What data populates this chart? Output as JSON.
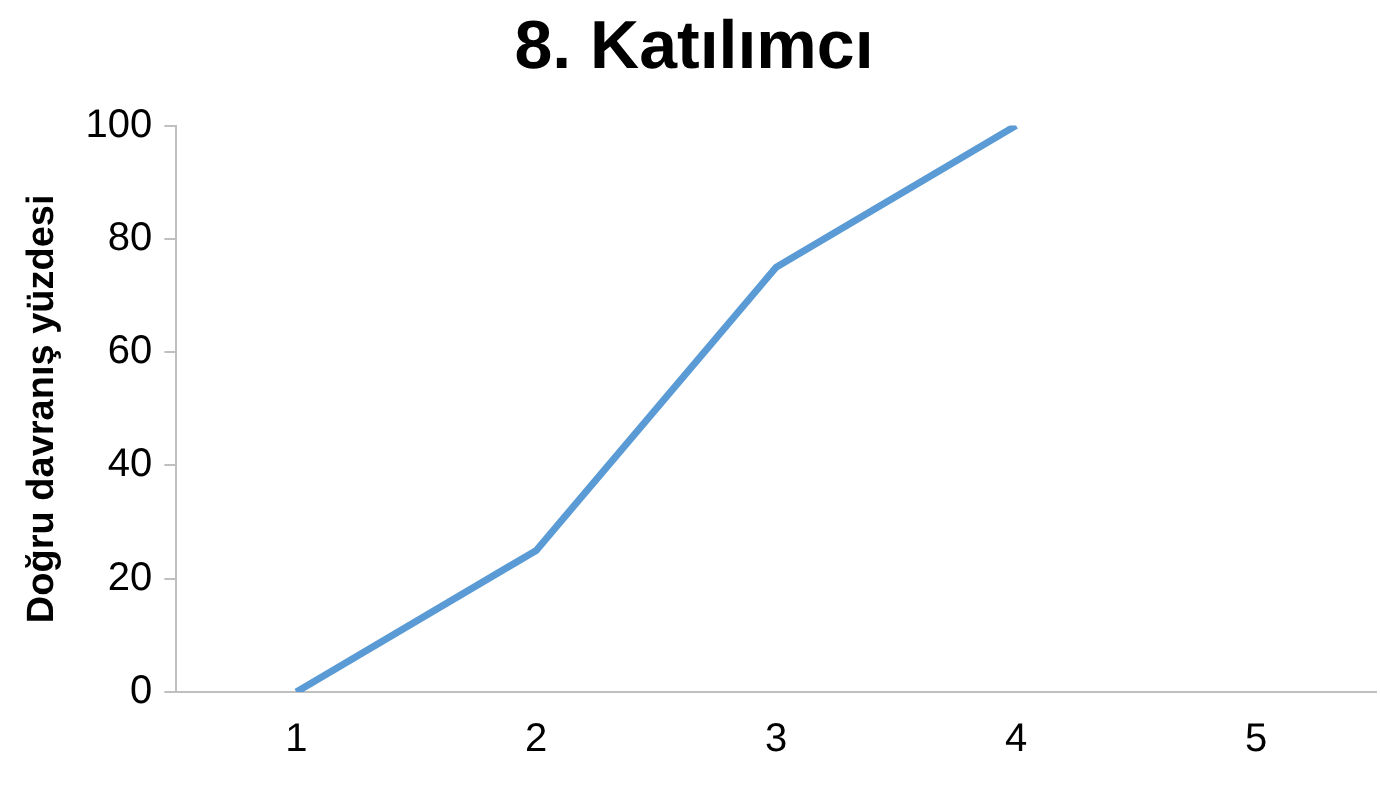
{
  "chart_data": {
    "type": "line",
    "title": "8. Katılımcı",
    "ylabel": "Doğru davranış yüzdesi",
    "categories": [
      "1",
      "2",
      "3",
      "4",
      "5"
    ],
    "series": [
      {
        "color": "#5b9bd5",
        "values": [
          0,
          25,
          75,
          100,
          null
        ]
      }
    ],
    "ylim": [
      0,
      100
    ],
    "yticks": [
      0,
      20,
      40,
      60,
      80,
      100
    ],
    "grid": false,
    "legend": false
  }
}
